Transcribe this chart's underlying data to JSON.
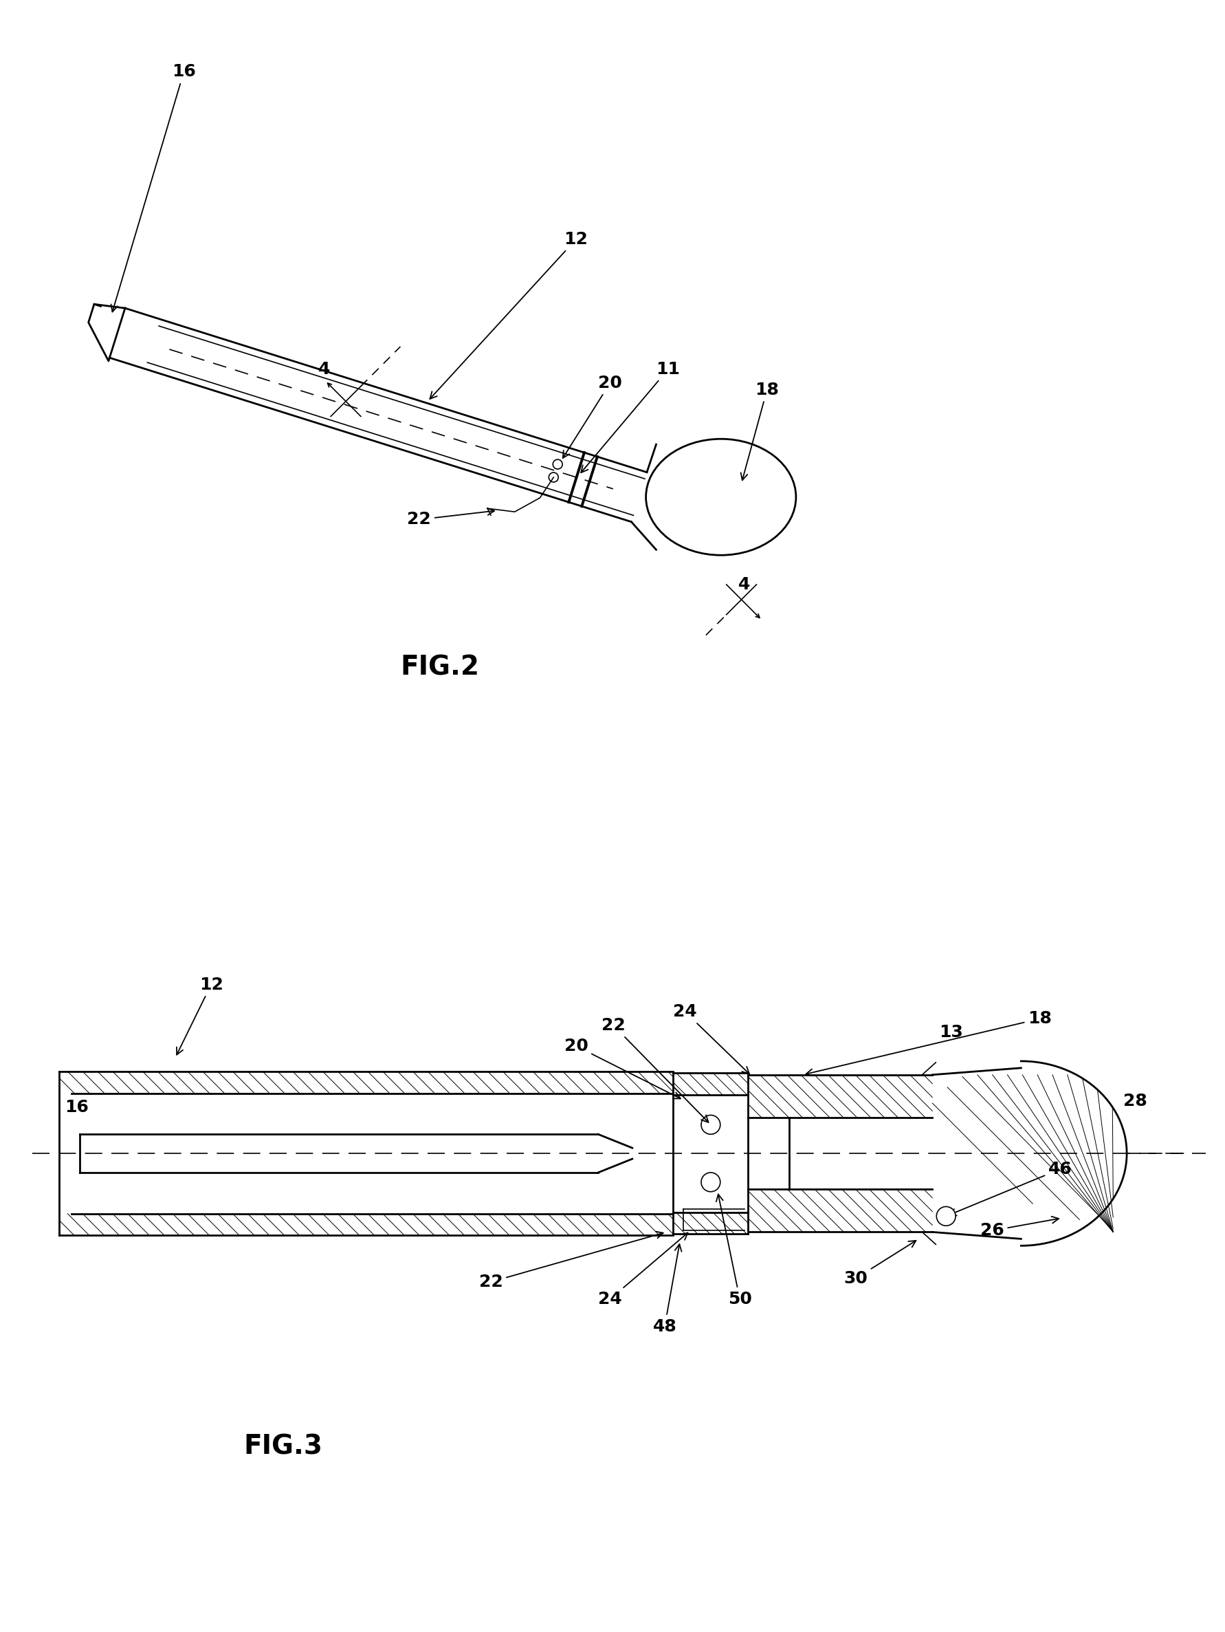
{
  "bg_color": "#ffffff",
  "line_color": "#000000",
  "fig_width": 17.82,
  "fig_height": 23.73,
  "fig2_caption": "FIG.2",
  "fig3_caption": "FIG.3",
  "lw_main": 2.0,
  "lw_thin": 1.2,
  "lw_thick": 2.8,
  "lw_hatch": 0.7,
  "label_fs": 18,
  "caption_fs": 28
}
